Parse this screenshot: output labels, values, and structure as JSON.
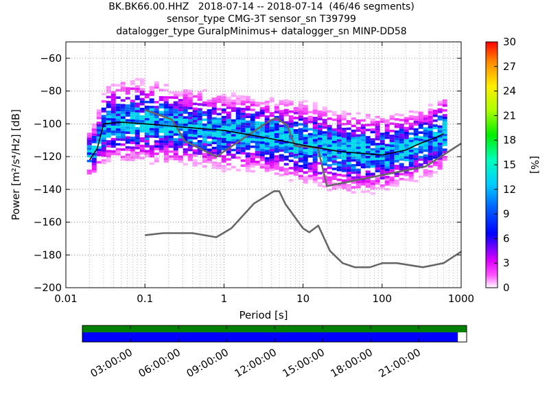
{
  "titles": [
    "BK.BK66.00.HHZ   2018-07-14 -- 2018-07-14  (46/46 segments)",
    "sensor_type CMG-3T sensor_sn T39799",
    "datalogger_type GuralpMinimus+ datalogger_sn MINP-DD58"
  ],
  "chart_data": {
    "type": "heatmap",
    "xlabel": "Period [s]",
    "ylabel": "Power [m²/s⁴/Hz] [dB]",
    "x_scale": "log",
    "xlim": [
      0.01,
      1000
    ],
    "ylim": [
      -200,
      -50
    ],
    "x_ticks": [
      0.01,
      0.1,
      1,
      10,
      100,
      1000
    ],
    "x_tick_labels": [
      "0.01",
      "0.1",
      "1",
      "10",
      "100",
      "1000"
    ],
    "y_ticks": [
      -200,
      -180,
      -160,
      -140,
      -120,
      -100,
      -80,
      -60
    ],
    "y_tick_labels": [
      "−200",
      "−180",
      "−160",
      "−140",
      "−120",
      "−100",
      "−80",
      "−60"
    ],
    "grid": true,
    "colorbar": {
      "label": "[%]",
      "range": [
        0,
        30
      ],
      "ticks": [
        0,
        3,
        6,
        9,
        12,
        15,
        18,
        21,
        24,
        27,
        30
      ],
      "colormap": "pqlx"
    },
    "psd_bands": [
      {
        "period": 0.02,
        "center": -118,
        "spread": 7
      },
      {
        "period": 0.03,
        "center": -100,
        "spread": 11
      },
      {
        "period": 0.05,
        "center": -98,
        "spread": 12
      },
      {
        "period": 0.1,
        "center": -99,
        "spread": 12
      },
      {
        "period": 0.3,
        "center": -102,
        "spread": 11
      },
      {
        "period": 1,
        "center": -105,
        "spread": 11
      },
      {
        "period": 3,
        "center": -107,
        "spread": 11
      },
      {
        "period": 10,
        "center": -112,
        "spread": 12
      },
      {
        "period": 30,
        "center": -117,
        "spread": 12
      },
      {
        "period": 100,
        "center": -118,
        "spread": 11
      },
      {
        "period": 300,
        "center": -112,
        "spread": 10
      },
      {
        "period": 600,
        "center": -105,
        "spread": 11
      }
    ],
    "series": [
      {
        "name": "",
        "role": "noise-model-high",
        "color": "#666666",
        "x": [
          0.1,
          0.22,
          0.32,
          0.8,
          3.8,
          4.6,
          6.3,
          7.9,
          15.4,
          20,
          354.8,
          1000
        ],
        "y": [
          -91.5,
          -97.4,
          -110.5,
          -120,
          -98,
          -96.5,
          -101,
          -113.5,
          -114.6,
          -138,
          -126,
          -112
        ]
      },
      {
        "name": "",
        "role": "noise-model-low",
        "color": "#666666",
        "x": [
          0.1,
          0.17,
          0.4,
          0.8,
          1.24,
          2.4,
          4.3,
          5,
          6,
          10,
          12,
          15.6,
          21.9,
          31.6,
          45,
          70,
          101,
          154,
          328,
          600,
          1000
        ],
        "y": [
          -168,
          -166.7,
          -166.7,
          -169.2,
          -163.7,
          -148.6,
          -141.1,
          -141.1,
          -149,
          -163.8,
          -166.2,
          -162.1,
          -177.5,
          -185,
          -187.5,
          -187.5,
          -185,
          -185,
          -187.5,
          -185,
          -178
        ]
      },
      {
        "name": "",
        "role": "mean",
        "color": "#000000",
        "x": [
          0.02,
          0.025,
          0.03,
          0.05,
          0.1,
          0.3,
          1,
          3,
          10,
          30,
          100,
          200,
          300,
          500,
          600
        ],
        "y": [
          -122,
          -115,
          -100,
          -99,
          -100,
          -102,
          -104,
          -108,
          -113,
          -117,
          -119,
          -116,
          -112,
          -108,
          -106
        ]
      }
    ],
    "coverage": {
      "tick_labels": [
        "03:00:00",
        "06:00:00",
        "09:00:00",
        "12:00:00",
        "15:00:00",
        "18:00:00",
        "21:00:00"
      ],
      "tick_hours": [
        3,
        6,
        9,
        12,
        15,
        18,
        21
      ],
      "total_hours": 24,
      "data_fraction": 0.977,
      "top_color": "#008000",
      "data_color": "#0000ff"
    }
  }
}
